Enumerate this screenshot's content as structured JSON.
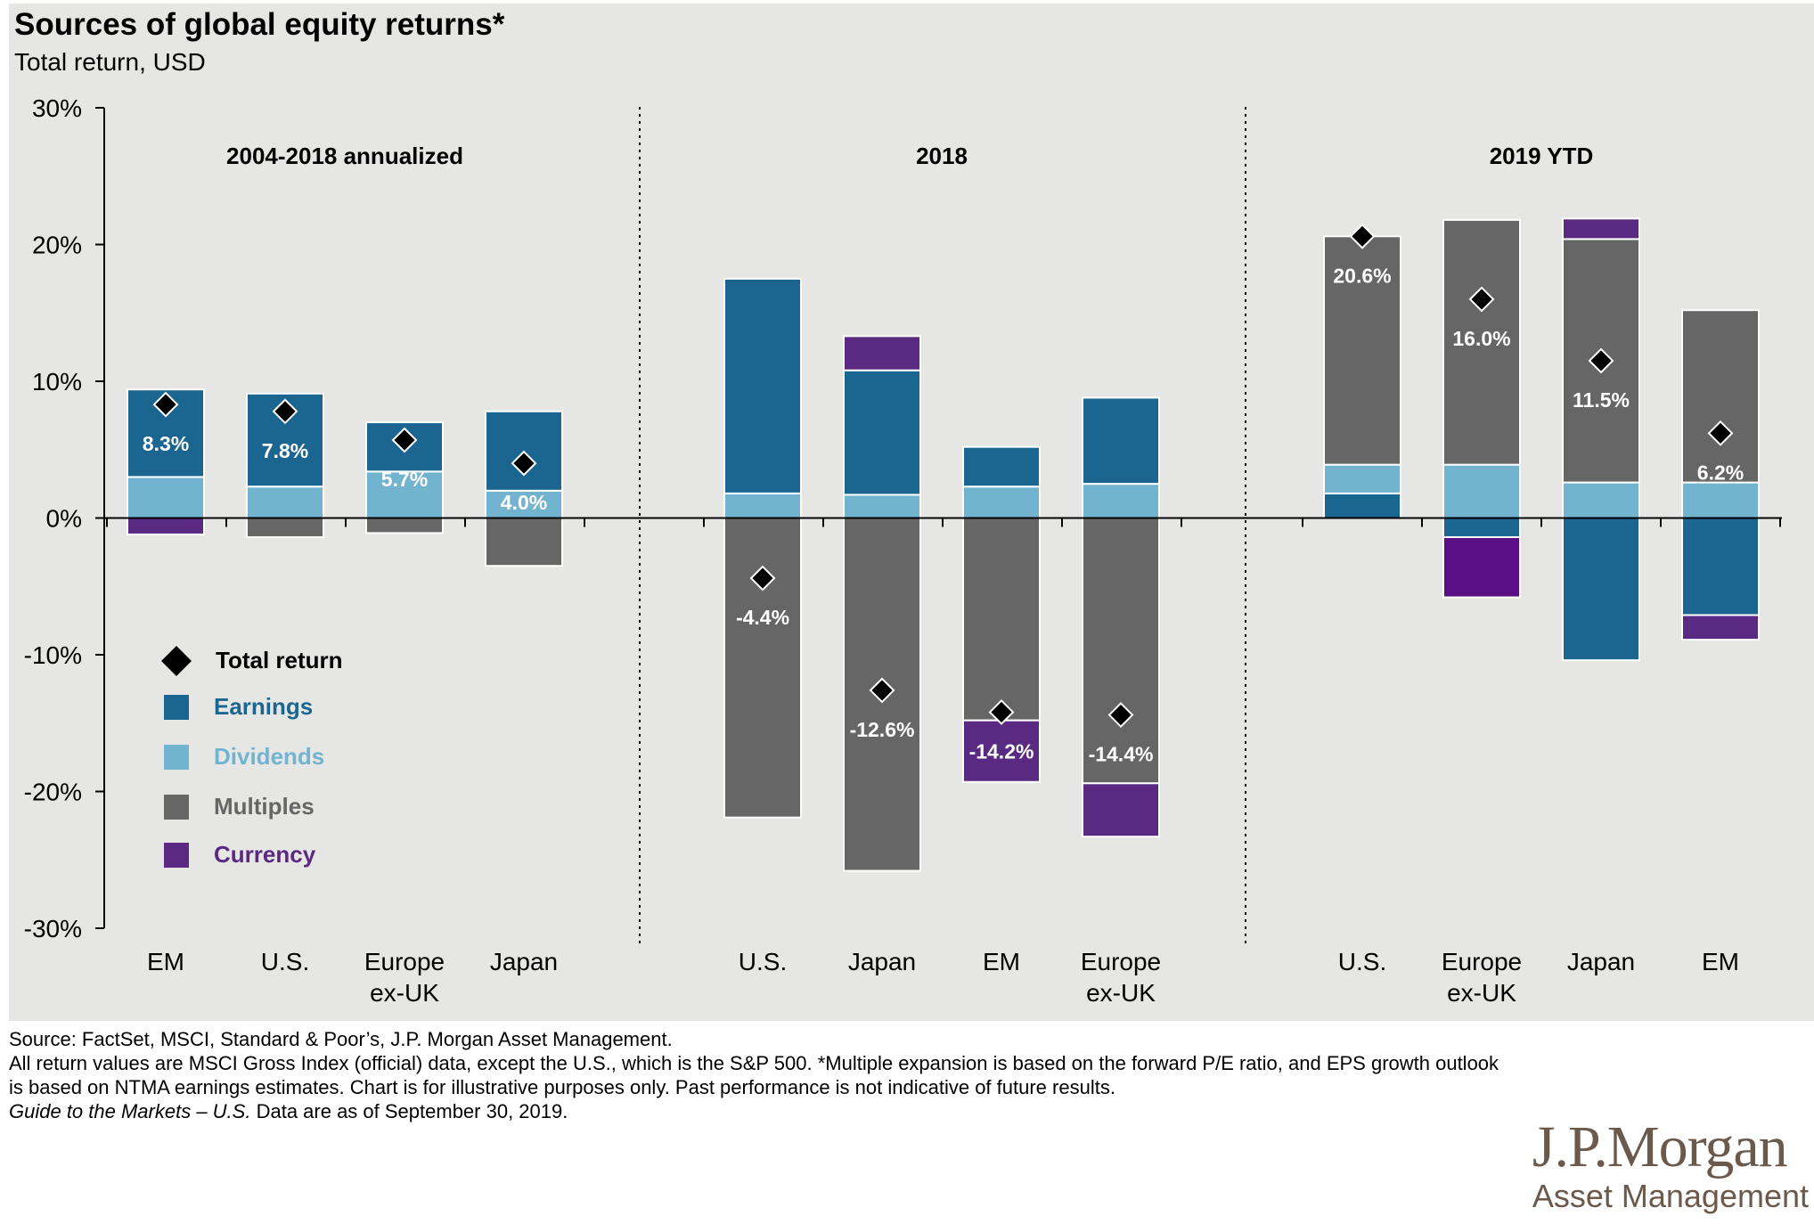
{
  "title": "Sources of global equity returns*",
  "subtitle": "Total return, USD",
  "chart_data": {
    "type": "bar",
    "stacked": true,
    "ylim": [
      -30,
      30
    ],
    "yticks": [
      30,
      20,
      10,
      0,
      -10,
      -20,
      -30
    ],
    "ytick_labels": [
      "30%",
      "20%",
      "10%",
      "0%",
      "-10%",
      "-20%",
      "-30%"
    ],
    "grid": false,
    "legend_placement": "bottom-left",
    "legend": [
      {
        "name": "Total return",
        "marker": "diamond",
        "color": "#000000"
      },
      {
        "name": "Earnings",
        "color": "#1b6690"
      },
      {
        "name": "Dividends",
        "color": "#72b3cf"
      },
      {
        "name": "Multiples",
        "color": "#666666"
      },
      {
        "name": "Currency",
        "color": "#5a2a82"
      }
    ],
    "colors": {
      "earnings": "#1b6690",
      "dividends": "#72b3cf",
      "multiples": "#666666",
      "currency": "#5a2a82",
      "currency_alt": "#5a0f86"
    },
    "groups": [
      {
        "title": "2004-2018 annualized",
        "bars": [
          {
            "label": "EM",
            "segments": [
              {
                "c": "dividends",
                "v": 3.0
              },
              {
                "c": "earnings",
                "v": 6.4
              },
              {
                "c": "currency",
                "v": -1.2
              }
            ],
            "total": 8.3,
            "total_label": "8.3%"
          },
          {
            "label": "U.S.",
            "segments": [
              {
                "c": "dividends",
                "v": 2.3
              },
              {
                "c": "earnings",
                "v": 6.8
              },
              {
                "c": "multiples",
                "v": -1.4
              }
            ],
            "total": 7.8,
            "total_label": "7.8%"
          },
          {
            "label": "Europe ex-UK",
            "segments": [
              {
                "c": "dividends",
                "v": 3.4
              },
              {
                "c": "earnings",
                "v": 3.6
              },
              {
                "c": "multiples",
                "v": -1.1
              }
            ],
            "total": 5.7,
            "total_label": "5.7%"
          },
          {
            "label": "Japan",
            "segments": [
              {
                "c": "dividends",
                "v": 2.0
              },
              {
                "c": "earnings",
                "v": 5.8
              },
              {
                "c": "multiples",
                "v": -3.5
              }
            ],
            "total": 4.0,
            "total_label": "4.0%"
          }
        ]
      },
      {
        "title": "2018",
        "bars": [
          {
            "label": "U.S.",
            "segments": [
              {
                "c": "dividends",
                "v": 1.8
              },
              {
                "c": "earnings",
                "v": 15.7
              },
              {
                "c": "multiples",
                "v": -21.9
              }
            ],
            "total": -4.4,
            "total_label": "-4.4%"
          },
          {
            "label": "Japan",
            "segments": [
              {
                "c": "dividends",
                "v": 1.7
              },
              {
                "c": "earnings",
                "v": 9.1
              },
              {
                "c": "currency",
                "v": 2.5
              },
              {
                "c": "multiples",
                "v": -25.8
              }
            ],
            "total": -12.6,
            "total_label": "-12.6%"
          },
          {
            "label": "EM",
            "segments": [
              {
                "c": "dividends",
                "v": 2.3
              },
              {
                "c": "earnings",
                "v": 2.9
              },
              {
                "c": "multiples",
                "v": -14.8
              },
              {
                "c": "currency",
                "v": -4.5
              }
            ],
            "total": -14.2,
            "total_label": "-14.2%"
          },
          {
            "label": "Europe ex-UK",
            "segments": [
              {
                "c": "dividends",
                "v": 2.5
              },
              {
                "c": "earnings",
                "v": 6.3
              },
              {
                "c": "multiples",
                "v": -19.4
              },
              {
                "c": "currency",
                "v": -3.9
              }
            ],
            "total": -14.4,
            "total_label": "-14.4%"
          }
        ]
      },
      {
        "title": "2019 YTD",
        "bars": [
          {
            "label": "U.S.",
            "segments": [
              {
                "c": "earnings",
                "v": 1.8
              },
              {
                "c": "dividends",
                "v": 2.1
              },
              {
                "c": "multiples",
                "v": 16.7
              }
            ],
            "total": 20.6,
            "total_label": "20.6%"
          },
          {
            "label": "Europe ex-UK",
            "segments": [
              {
                "c": "dividends",
                "v": 3.9
              },
              {
                "c": "multiples",
                "v": 17.9
              },
              {
                "c": "earnings",
                "v": -1.4
              },
              {
                "c": "currency_alt",
                "v": -4.4
              }
            ],
            "total": 16.0,
            "total_label": "16.0%"
          },
          {
            "label": "Japan",
            "segments": [
              {
                "c": "dividends",
                "v": 2.6
              },
              {
                "c": "multiples",
                "v": 17.8
              },
              {
                "c": "currency",
                "v": 1.5
              },
              {
                "c": "earnings",
                "v": -10.4
              }
            ],
            "total": 11.5,
            "total_label": "11.5%"
          },
          {
            "label": "EM",
            "segments": [
              {
                "c": "dividends",
                "v": 2.6
              },
              {
                "c": "multiples",
                "v": 12.6
              },
              {
                "c": "earnings",
                "v": -7.1
              },
              {
                "c": "currency",
                "v": -1.8
              }
            ],
            "total": 6.2,
            "total_label": "6.2%"
          }
        ]
      }
    ]
  },
  "footnotes": {
    "source": "Source: FactSet, MSCI, Standard & Poor’s, J.P. Morgan Asset Management.",
    "note": "All return values are MSCI Gross Index (official) data, except the U.S., which is the S&P 500. *Multiple expansion is based on the forward P/E ratio, and EPS growth outlook is based on NTMA earnings estimates. Chart is for illustrative purposes only. Past performance is not indicative of future results.",
    "guide_italic": "Guide to the Markets – U.S.",
    "guide_rest": " Data are as of September 30, 2019."
  },
  "logo": {
    "line1": "J.P.Morgan",
    "line2": "Asset Management"
  }
}
